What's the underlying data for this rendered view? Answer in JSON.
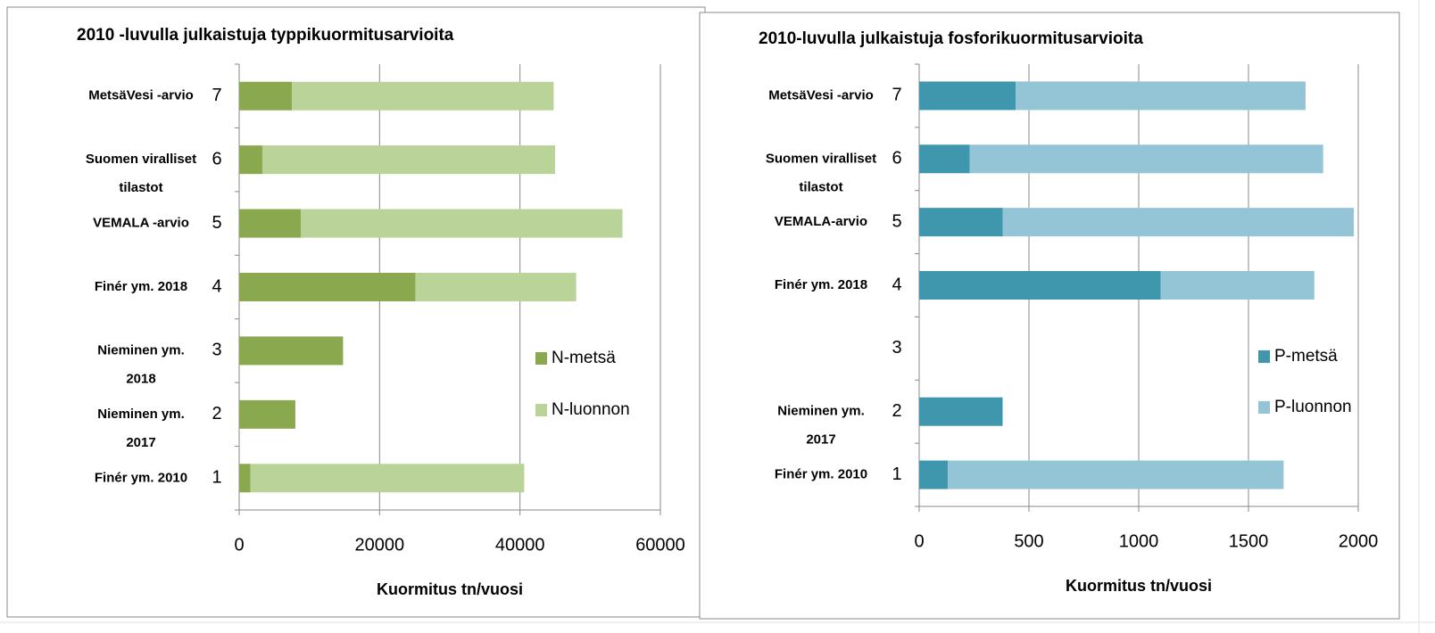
{
  "chart_data": [
    {
      "type": "bar",
      "orientation": "horizontal",
      "stacked": true,
      "title": "2010 -luvulla julkaistuja typpikuormitusarvioita",
      "xlabel": "Kuormitus tn/vuosi",
      "categories": [
        "1",
        "2",
        "3",
        "4",
        "5",
        "6",
        "7"
      ],
      "labels": [
        [
          "Finér ym. 2010"
        ],
        [
          "Nieminen ym.",
          "2017"
        ],
        [
          "Nieminen ym.",
          "2018"
        ],
        [
          "Finér ym. 2018"
        ],
        [
          "VEMALA -arvio"
        ],
        [
          "Suomen viralliset",
          "tilastot"
        ],
        [
          "MetsäVesi -arvio"
        ]
      ],
      "highlight_category": "7",
      "highlight_color": "#c0212b",
      "series": [
        {
          "name": "N-metsä",
          "color": "#8aa84e",
          "values": [
            1600,
            8000,
            14800,
            25100,
            8800,
            3300,
            7500
          ]
        },
        {
          "name": "N-luonnon",
          "color": "#b9d398",
          "values": [
            39000,
            null,
            null,
            22900,
            45800,
            41700,
            37300
          ]
        }
      ],
      "xlim": [
        0,
        60000
      ],
      "xticks": [
        0,
        20000,
        40000,
        60000
      ],
      "grid": true,
      "legend": "right"
    },
    {
      "type": "bar",
      "orientation": "horizontal",
      "stacked": true,
      "title": "2010-luvulla julkaistuja fosforikuormitusarvioita",
      "xlabel": "Kuormitus tn/vuosi",
      "categories": [
        "1",
        "2",
        "3",
        "4",
        "5",
        "6",
        "7"
      ],
      "labels": [
        [
          "Finér ym. 2010"
        ],
        [
          "Nieminen ym.",
          "2017"
        ],
        null,
        [
          "Finér ym. 2018"
        ],
        [
          "VEMALA-arvio"
        ],
        [
          "Suomen viralliset",
          "tilastot"
        ],
        [
          "MetsäVesi -arvio"
        ]
      ],
      "highlight_category": "7",
      "highlight_color": "#c0212b",
      "series": [
        {
          "name": "P-metsä",
          "color": "#3f97ae",
          "values": [
            130,
            380,
            null,
            1100,
            380,
            230,
            440
          ]
        },
        {
          "name": "P-luonnon",
          "color": "#93c5d6",
          "values": [
            1530,
            null,
            null,
            700,
            1600,
            1610,
            1320
          ]
        }
      ],
      "xlim": [
        0,
        2000
      ],
      "xticks": [
        0,
        500,
        1000,
        1500,
        2000
      ],
      "grid": true,
      "legend": "right"
    }
  ]
}
